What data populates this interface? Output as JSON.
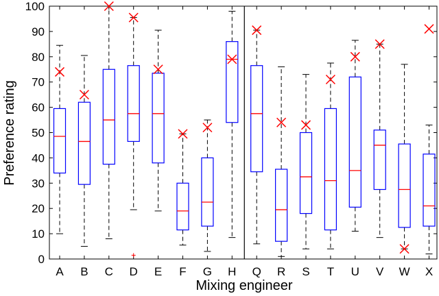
{
  "chart_data": {
    "type": "box",
    "title": "",
    "xlabel": "Mixing engineer",
    "ylabel": "Preference rating",
    "ylim": [
      0,
      100
    ],
    "yticks": [
      0,
      10,
      20,
      30,
      40,
      50,
      60,
      70,
      80,
      90,
      100
    ],
    "grid": false,
    "group_divider_after": "H",
    "colors": {
      "box": "#0000ff",
      "median": "#ff0000",
      "marker": "#ff0000",
      "whisker": "#000000"
    },
    "categories": [
      "A",
      "B",
      "C",
      "D",
      "E",
      "F",
      "G",
      "H",
      "Q",
      "R",
      "S",
      "T",
      "U",
      "V",
      "W",
      "X"
    ],
    "boxes": [
      {
        "label": "A",
        "whisker_low": 10,
        "q1": 34,
        "median": 48.5,
        "q3": 59.5,
        "whisker_high": 84.5,
        "marker": 74,
        "outliers": []
      },
      {
        "label": "B",
        "whisker_low": 5,
        "q1": 29.5,
        "median": 46.5,
        "q3": 62,
        "whisker_high": 80.5,
        "marker": 65,
        "outliers": []
      },
      {
        "label": "C",
        "whisker_low": 8,
        "q1": 37.5,
        "median": 55,
        "q3": 75,
        "whisker_high": 100,
        "marker": 100,
        "outliers": []
      },
      {
        "label": "D",
        "whisker_low": 19.5,
        "q1": 46.5,
        "median": 57.5,
        "q3": 76.5,
        "whisker_high": 95.5,
        "marker": 95.5,
        "outliers": [
          1.5
        ]
      },
      {
        "label": "E",
        "whisker_low": 19,
        "q1": 38,
        "median": 57.5,
        "q3": 73.5,
        "whisker_high": 90.5,
        "marker": 75,
        "outliers": []
      },
      {
        "label": "F",
        "whisker_low": 5.5,
        "q1": 11.5,
        "median": 19,
        "q3": 30,
        "whisker_high": 49.5,
        "marker": 49.5,
        "outliers": []
      },
      {
        "label": "G",
        "whisker_low": 3,
        "q1": 13,
        "median": 22.5,
        "q3": 40,
        "whisker_high": 55,
        "marker": 52,
        "outliers": []
      },
      {
        "label": "H",
        "whisker_low": 8.5,
        "q1": 54,
        "median": 79,
        "q3": 86,
        "whisker_high": 98,
        "marker": 79,
        "outliers": []
      },
      {
        "label": "Q",
        "whisker_low": 6,
        "q1": 34.5,
        "median": 57.5,
        "q3": 76.5,
        "whisker_high": 90.5,
        "marker": 90.5,
        "outliers": []
      },
      {
        "label": "R",
        "whisker_low": 1,
        "q1": 7,
        "median": 19.5,
        "q3": 35.5,
        "whisker_high": 76,
        "marker": 54,
        "outliers": []
      },
      {
        "label": "S",
        "whisker_low": 4,
        "q1": 18,
        "median": 32.5,
        "q3": 50,
        "whisker_high": 73,
        "marker": 53,
        "outliers": []
      },
      {
        "label": "T",
        "whisker_low": 4,
        "q1": 11.5,
        "median": 31,
        "q3": 59.5,
        "whisker_high": 77.5,
        "marker": 71,
        "outliers": []
      },
      {
        "label": "U",
        "whisker_low": 11,
        "q1": 20.5,
        "median": 35,
        "q3": 72,
        "whisker_high": 86.5,
        "marker": 80,
        "outliers": []
      },
      {
        "label": "V",
        "whisker_low": 8.5,
        "q1": 27.5,
        "median": 45,
        "q3": 51,
        "whisker_high": 85,
        "marker": 85,
        "outliers": []
      },
      {
        "label": "W",
        "whisker_low": 4,
        "q1": 12.5,
        "median": 27.5,
        "q3": 45.5,
        "whisker_high": 77,
        "marker": 4,
        "outliers": []
      },
      {
        "label": "X",
        "whisker_low": 2,
        "q1": 13,
        "median": 21,
        "q3": 41.5,
        "whisker_high": 53,
        "marker": 91,
        "outliers": []
      }
    ]
  }
}
